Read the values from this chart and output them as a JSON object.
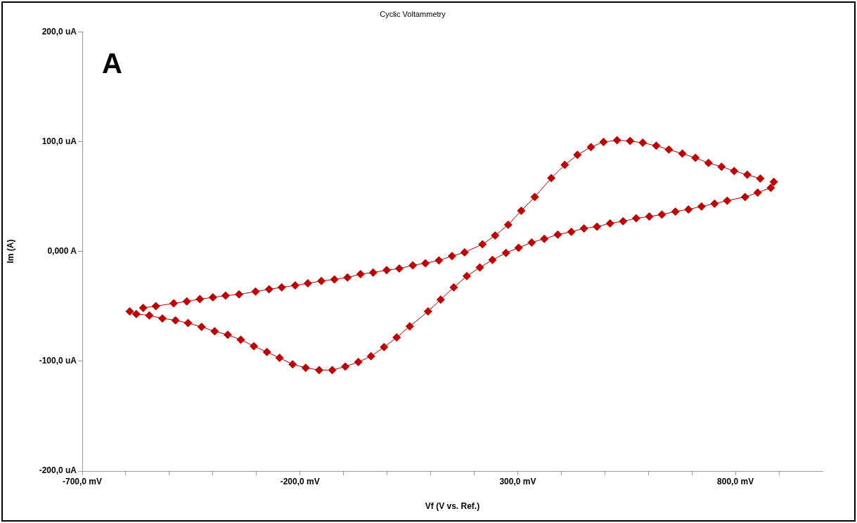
{
  "chart_data": {
    "type": "line",
    "title": "Cyclic Voltammetry",
    "xlabel": "Vf (V vs. Ref.)",
    "ylabel": "Im (A)",
    "annotations": [
      "A"
    ],
    "xlim": [
      -700,
      1000
    ],
    "xticks": [
      {
        "value": -700,
        "label": "-700,0 mV"
      },
      {
        "value": -600,
        "label": null
      },
      {
        "value": -500,
        "label": null
      },
      {
        "value": -400,
        "label": null
      },
      {
        "value": -300,
        "label": null
      },
      {
        "value": -200,
        "label": "-200,0 mV"
      },
      {
        "value": -100,
        "label": null
      },
      {
        "value": 0,
        "label": null
      },
      {
        "value": 100,
        "label": null
      },
      {
        "value": 200,
        "label": null
      },
      {
        "value": 300,
        "label": "300,0 mV"
      },
      {
        "value": 400,
        "label": null
      },
      {
        "value": 500,
        "label": null
      },
      {
        "value": 600,
        "label": null
      },
      {
        "value": 700,
        "label": null
      },
      {
        "value": 800,
        "label": "800,0 mV"
      },
      {
        "value": 900,
        "label": null
      }
    ],
    "ylim": [
      -200,
      200
    ],
    "yticks": [
      {
        "value": -200,
        "label": "-200,0 uA"
      },
      {
        "value": -100,
        "label": "-100,0 uA"
      },
      {
        "value": 0,
        "label": "0,000 A"
      },
      {
        "value": 100,
        "label": "100,0 uA"
      },
      {
        "value": 200,
        "label": "200,0 uA"
      }
    ],
    "grid": false,
    "legend": false,
    "marker": "diamond",
    "line_style": "solid",
    "series": [
      {
        "color": "#c00000",
        "x": [
          -591,
          -576,
          -546,
          -516,
          -486,
          -457,
          -426,
          -396,
          -366,
          -336,
          -306,
          -276,
          -247,
          -217,
          -187,
          -156,
          -126,
          -96,
          -66,
          -37,
          -7,
          22,
          52,
          94,
          123,
          153,
          183,
          213,
          242,
          273,
          302,
          332,
          361,
          392,
          423,
          452,
          482,
          512,
          542,
          572,
          602,
          631,
          662,
          692,
          722,
          752,
          781,
          822,
          851,
          881,
          888
        ],
        "values": [
          -54.6,
          -57.0,
          -58.4,
          -61.0,
          -62.8,
          -65.3,
          -68.7,
          -72.8,
          -76.0,
          -80.5,
          -86.3,
          -91.7,
          -97.0,
          -102.8,
          -106.0,
          -108.1,
          -108.1,
          -104.9,
          -100.8,
          -95.5,
          -87.2,
          -78.4,
          -68.3,
          -54.6,
          -43.9,
          -32.8,
          -22.5,
          -14.6,
          -7.8,
          -1.4,
          3.3,
          8.1,
          11.5,
          15.2,
          17.9,
          20.9,
          22.5,
          25.5,
          27.4,
          30.1,
          31.7,
          33.5,
          36.3,
          38.2,
          40.9,
          43.4,
          46.2,
          49.6,
          53.5,
          57.9,
          63.3
        ]
      },
      {
        "color": "#c00000",
        "x": [
          857,
          827,
          797,
          768,
          738,
          708,
          678,
          647,
          618,
          587,
          558,
          528,
          497,
          468,
          437,
          408,
          377,
          339,
          308,
          278,
          248,
          219,
          178,
          149,
          119,
          88,
          59,
          28,
          -1,
          -32,
          -61,
          -91,
          -121,
          -151,
          -182,
          -211,
          -242,
          -271,
          -302,
          -340,
          -371,
          -400,
          -430,
          -460,
          -490,
          -531,
          -560
        ],
        "values": [
          66.3,
          69.8,
          73.2,
          77.1,
          80.5,
          85.2,
          89.0,
          92.7,
          96.2,
          98.9,
          100.5,
          101.2,
          99.6,
          95.0,
          87.9,
          78.8,
          66.8,
          49.6,
          37.0,
          24.3,
          14.5,
          6.5,
          -0.9,
          -4.3,
          -8.2,
          -10.8,
          -12.7,
          -15.7,
          -17.1,
          -19.3,
          -20.7,
          -23.8,
          -25.5,
          -27.0,
          -29.1,
          -31.0,
          -32.8,
          -34.5,
          -36.6,
          -39.2,
          -40.3,
          -41.9,
          -43.5,
          -45.6,
          -47.3,
          -49.9,
          -51.4
        ]
      }
    ]
  }
}
